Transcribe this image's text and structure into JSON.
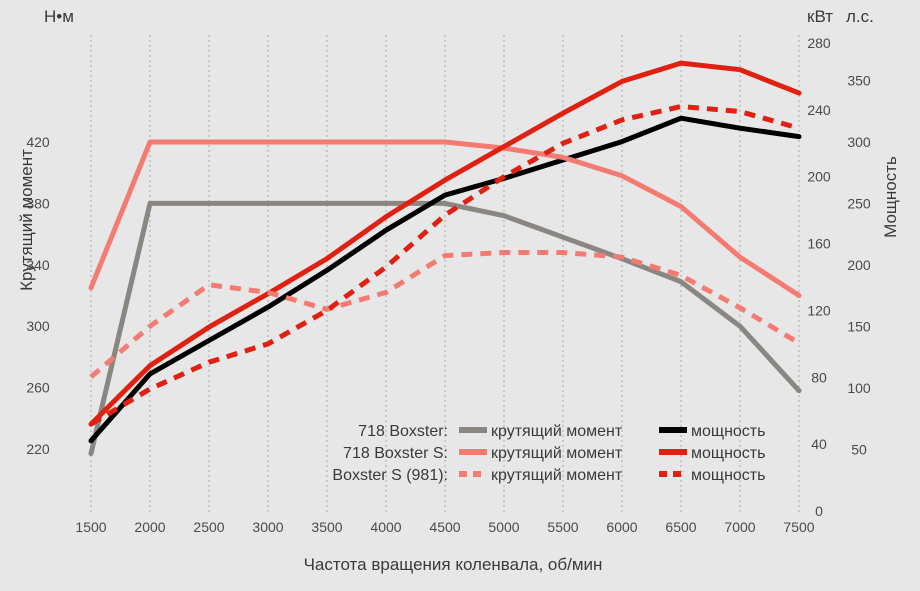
{
  "chart_data": {
    "type": "line",
    "units": {
      "left": "Н•м",
      "right_inner": "кВт",
      "right_outer": "л.с."
    },
    "xlabel": "Частота вращения коленвала, об/мин",
    "ylabel_left": "Крутящий момент",
    "ylabel_right": "Мощность",
    "x_ticks": [
      1500,
      2000,
      2500,
      3000,
      3500,
      4000,
      4500,
      5000,
      5500,
      6000,
      6500,
      7000,
      7500
    ],
    "y_left_ticks": [
      220,
      260,
      300,
      340,
      380,
      420
    ],
    "y_kw_ticks": [
      0,
      40,
      80,
      120,
      160,
      200,
      240,
      280
    ],
    "y_hp_ticks": [
      50,
      100,
      150,
      200,
      250,
      300,
      350
    ],
    "xlim": [
      1500,
      7500
    ],
    "ylim_left": [
      180,
      460
    ],
    "ylim_kw": [
      0,
      280
    ],
    "series": [
      {
        "model": "718 Boxster:",
        "name": "крутящий момент",
        "axis": "left",
        "color": "#8a8682",
        "dashed": false,
        "points": [
          [
            1500,
            217
          ],
          [
            2000,
            380
          ],
          [
            4500,
            380
          ],
          [
            5000,
            372
          ],
          [
            5500,
            358
          ],
          [
            6000,
            344
          ],
          [
            6500,
            329
          ],
          [
            7000,
            300
          ],
          [
            7500,
            258
          ]
        ]
      },
      {
        "model": "718 Boxster:",
        "name": "мощность",
        "axis": "kw",
        "color": "#000000",
        "dashed": false,
        "points": [
          [
            1500,
            42
          ],
          [
            2000,
            82
          ],
          [
            2500,
            102
          ],
          [
            3000,
            122
          ],
          [
            3500,
            144
          ],
          [
            4000,
            168
          ],
          [
            4500,
            189
          ],
          [
            5000,
            199
          ],
          [
            5500,
            210
          ],
          [
            6000,
            221
          ],
          [
            6500,
            235
          ],
          [
            7000,
            229
          ],
          [
            7500,
            224
          ]
        ]
      },
      {
        "model": "718 Boxster S:",
        "name": "крутящий момент",
        "axis": "left",
        "color": "#f47b72",
        "dashed": false,
        "points": [
          [
            1500,
            325
          ],
          [
            2000,
            420
          ],
          [
            4500,
            420
          ],
          [
            5000,
            416
          ],
          [
            5500,
            410
          ],
          [
            6000,
            398
          ],
          [
            6500,
            378
          ],
          [
            7000,
            345
          ],
          [
            7500,
            320
          ]
        ]
      },
      {
        "model": "718 Boxster S:",
        "name": "мощность",
        "axis": "kw",
        "color": "#e02010",
        "dashed": false,
        "points": [
          [
            1500,
            52
          ],
          [
            2000,
            87
          ],
          [
            2500,
            110
          ],
          [
            3000,
            130
          ],
          [
            3500,
            151
          ],
          [
            4000,
            176
          ],
          [
            4500,
            198
          ],
          [
            5000,
            218
          ],
          [
            5500,
            238
          ],
          [
            6000,
            257
          ],
          [
            6500,
            268
          ],
          [
            7000,
            264
          ],
          [
            7500,
            250
          ]
        ]
      },
      {
        "model": "Boxster S (981):",
        "name": "крутящий момент",
        "axis": "left",
        "color": "#f47b72",
        "dashed": true,
        "points": [
          [
            1500,
            267
          ],
          [
            2000,
            300
          ],
          [
            2500,
            327
          ],
          [
            3000,
            322
          ],
          [
            3500,
            311
          ],
          [
            4000,
            322
          ],
          [
            4500,
            346
          ],
          [
            5000,
            348
          ],
          [
            5500,
            348
          ],
          [
            6000,
            345
          ],
          [
            6500,
            333
          ],
          [
            7000,
            312
          ],
          [
            7500,
            289
          ]
        ]
      },
      {
        "model": "Boxster S (981):",
        "name": "мощность",
        "axis": "kw",
        "color": "#e02010",
        "dashed": true,
        "points": [
          [
            1500,
            52
          ],
          [
            2000,
            73
          ],
          [
            2500,
            89
          ],
          [
            3000,
            100
          ],
          [
            3500,
            120
          ],
          [
            4000,
            146
          ],
          [
            4500,
            177
          ],
          [
            5000,
            200
          ],
          [
            5500,
            220
          ],
          [
            6000,
            234
          ],
          [
            6500,
            242
          ],
          [
            7000,
            239
          ],
          [
            7500,
            229
          ]
        ]
      }
    ],
    "legend": {
      "placement": "bottom-right",
      "rows": [
        {
          "model": "718 Boxster:",
          "items": [
            {
              "name": "крутящий момент",
              "color": "#8a8682",
              "dashed": false
            },
            {
              "name": "мощность",
              "color": "#000000",
              "dashed": false
            }
          ]
        },
        {
          "model": "718 Boxster S:",
          "items": [
            {
              "name": "крутящий момент",
              "color": "#f47b72",
              "dashed": false
            },
            {
              "name": "мощность",
              "color": "#e02010",
              "dashed": false
            }
          ]
        },
        {
          "model": "Boxster S (981):",
          "items": [
            {
              "name": "крутящий момент",
              "color": "#f47b72",
              "dashed": true
            },
            {
              "name": "мощность",
              "color": "#e02010",
              "dashed": true
            }
          ]
        }
      ]
    },
    "grid": true,
    "grid_style": "vertical dotted"
  }
}
